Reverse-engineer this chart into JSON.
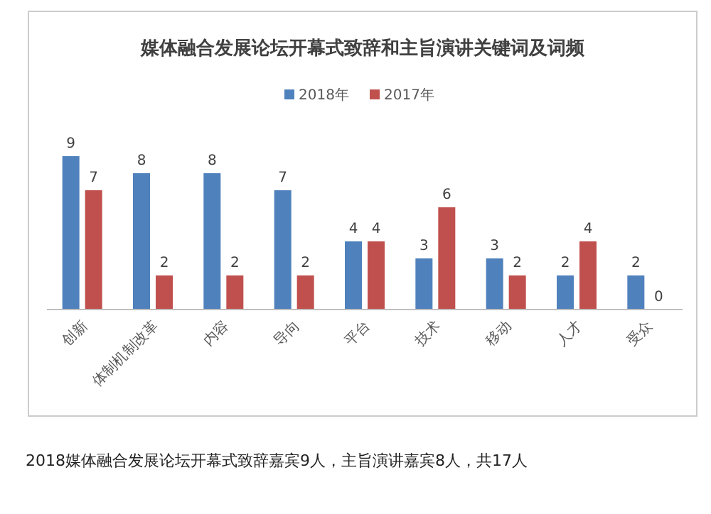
{
  "chart_data": {
    "type": "bar",
    "title": "媒体融合发展论坛开幕式致辞和主旨演讲关键词及词频",
    "categories": [
      "创新",
      "体制机制改革",
      "内容",
      "导向",
      "平台",
      "技术",
      "移动",
      "人才",
      "受众"
    ],
    "series": [
      {
        "name": "2018年",
        "color": "#4f81bd",
        "values": [
          9,
          8,
          8,
          7,
          4,
          3,
          3,
          2,
          2
        ]
      },
      {
        "name": "2017年",
        "color": "#c0504d",
        "values": [
          7,
          2,
          2,
          2,
          4,
          6,
          2,
          4,
          0
        ]
      }
    ],
    "data_labels": true,
    "legend": "top",
    "annotations": [
      "2018媒体融合发展论坛开幕式致辞嘉宾9人，主旨演讲嘉宾8人，共17人"
    ]
  }
}
